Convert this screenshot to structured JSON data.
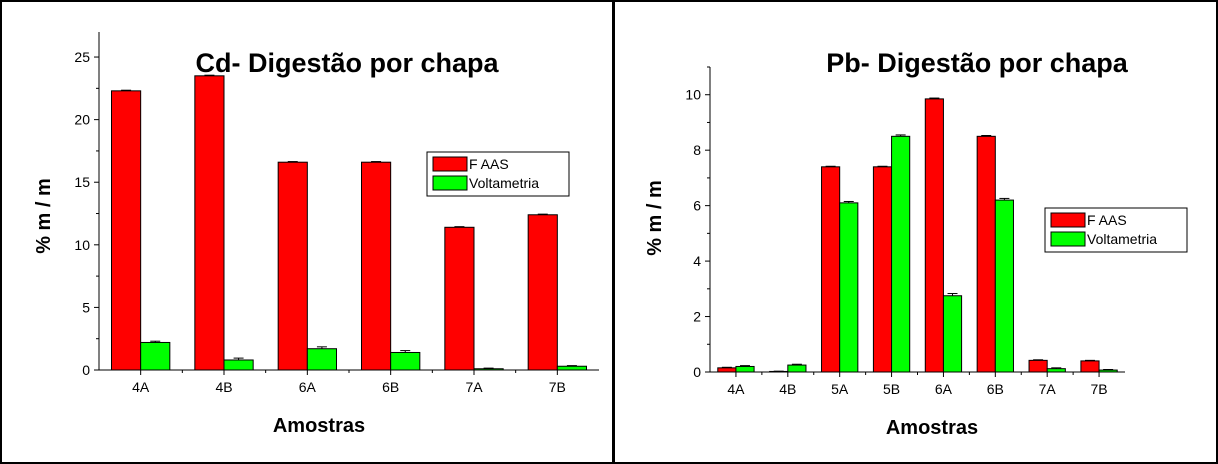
{
  "chart_data": [
    {
      "type": "bar",
      "title": "Cd- Digestão por chapa",
      "xlabel": "Amostras",
      "ylabel": "% m / m",
      "categories": [
        "4A",
        "4B",
        "6A",
        "6B",
        "7A",
        "7B"
      ],
      "ylim": [
        0,
        27
      ],
      "yticks": [
        0,
        5,
        10,
        15,
        20,
        25
      ],
      "legend_position": "right",
      "series": [
        {
          "name": "F AAS",
          "color": "#ff0000",
          "values": [
            22.3,
            23.5,
            16.6,
            16.6,
            11.4,
            12.4
          ],
          "errors": [
            0.05,
            0.05,
            0.05,
            0.05,
            0.05,
            0.05
          ]
        },
        {
          "name": "Voltametria",
          "color": "#00ff00",
          "values": [
            2.2,
            0.8,
            1.7,
            1.4,
            0.1,
            0.3
          ],
          "errors": [
            0.1,
            0.15,
            0.15,
            0.15,
            0.05,
            0.05
          ]
        }
      ]
    },
    {
      "type": "bar",
      "title": "Pb- Digestão por chapa",
      "xlabel": "Amostras",
      "ylabel": "% m / m",
      "categories": [
        "4A",
        "4B",
        "5A",
        "5B",
        "6A",
        "6B",
        "7A",
        "7B"
      ],
      "ylim": [
        0,
        11
      ],
      "yticks": [
        0,
        2,
        4,
        6,
        8,
        10
      ],
      "legend_position": "right",
      "series": [
        {
          "name": "F AAS",
          "color": "#ff0000",
          "values": [
            0.15,
            0.02,
            7.4,
            7.4,
            9.85,
            8.5,
            0.42,
            0.4
          ],
          "errors": [
            0.02,
            0.01,
            0.02,
            0.02,
            0.03,
            0.03,
            0.02,
            0.02
          ]
        },
        {
          "name": "Voltametria",
          "color": "#00ff00",
          "values": [
            0.2,
            0.25,
            6.1,
            8.5,
            2.75,
            6.2,
            0.12,
            0.07
          ],
          "errors": [
            0.03,
            0.03,
            0.05,
            0.05,
            0.08,
            0.06,
            0.03,
            0.02
          ]
        }
      ]
    }
  ]
}
